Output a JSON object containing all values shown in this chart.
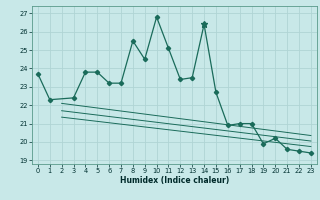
{
  "xlabel": "Humidex (Indice chaleur)",
  "background_color": "#c8e8e8",
  "grid_color": "#b0d4d4",
  "line_color": "#1a6b5a",
  "xlim_min": -0.5,
  "xlim_max": 23.5,
  "ylim_min": 18.8,
  "ylim_max": 27.4,
  "yticks": [
    19,
    20,
    21,
    22,
    23,
    24,
    25,
    26,
    27
  ],
  "xticks": [
    0,
    1,
    2,
    3,
    4,
    5,
    6,
    7,
    8,
    9,
    10,
    11,
    12,
    13,
    14,
    15,
    16,
    17,
    18,
    19,
    20,
    21,
    22,
    23
  ],
  "main_x": [
    0,
    1,
    3,
    4,
    5,
    6,
    7,
    8,
    9,
    10,
    11,
    12,
    13,
    14,
    15,
    16,
    17,
    18,
    19,
    20,
    21,
    22,
    23
  ],
  "main_y": [
    23.7,
    22.3,
    22.4,
    23.8,
    23.8,
    23.2,
    23.2,
    25.5,
    24.5,
    26.8,
    25.1,
    23.4,
    23.5,
    26.4,
    22.7,
    20.9,
    21.0,
    21.0,
    19.9,
    20.2,
    19.6,
    19.5,
    19.4
  ],
  "star_x": 14,
  "star_y": 26.4,
  "trend1_x": [
    2,
    23
  ],
  "trend1_y": [
    22.1,
    20.35
  ],
  "trend2_x": [
    2,
    23
  ],
  "trend2_y": [
    21.35,
    19.75
  ],
  "trend3_x": [
    2,
    23
  ],
  "trend3_y": [
    21.7,
    20.05
  ],
  "xlabel_fontsize": 5.5,
  "tick_fontsize": 4.8
}
